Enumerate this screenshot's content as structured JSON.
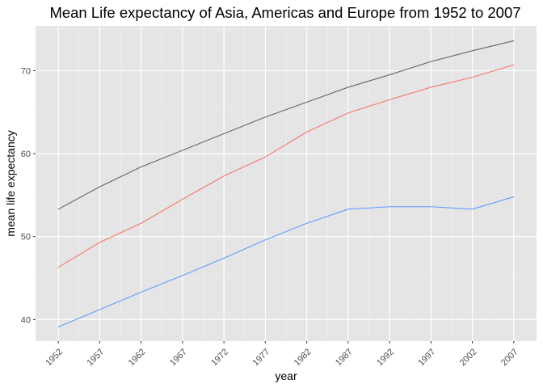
{
  "chart_data": {
    "type": "line",
    "title": "Mean Life expectancy of Asia, Americas and Europe from 1952 to 2007",
    "xlabel": "year",
    "ylabel": "mean life expectancy",
    "x": [
      1952,
      1957,
      1962,
      1967,
      1972,
      1977,
      1982,
      1987,
      1992,
      1997,
      2002,
      2007
    ],
    "x_tick_labels": [
      "1952",
      "1957",
      "1962",
      "1967",
      "1972",
      "1977",
      "1982",
      "1987",
      "1992",
      "1997",
      "2002",
      "2007"
    ],
    "y_ticks": [
      40,
      50,
      60,
      70
    ],
    "y_tick_labels": [
      "40",
      "50",
      "60",
      "70"
    ],
    "xlim": [
      1949.25,
      2009.75
    ],
    "ylim": [
      37.4,
      75.4
    ],
    "grid": true,
    "legend": "none",
    "background": "#e5e5e5",
    "series": [
      {
        "color": "#666666",
        "values": [
          53.3,
          56.0,
          58.4,
          60.4,
          62.4,
          64.4,
          66.2,
          68.0,
          69.5,
          71.1,
          72.4,
          73.6
        ]
      },
      {
        "color": "#f8766d",
        "values": [
          46.3,
          49.3,
          51.6,
          54.5,
          57.3,
          59.6,
          62.6,
          64.9,
          66.5,
          68.0,
          69.2,
          70.7
        ]
      },
      {
        "color": "#619cff",
        "values": [
          39.1,
          41.2,
          43.3,
          45.3,
          47.4,
          49.6,
          51.6,
          53.3,
          53.6,
          53.6,
          53.3,
          54.8
        ]
      }
    ]
  }
}
